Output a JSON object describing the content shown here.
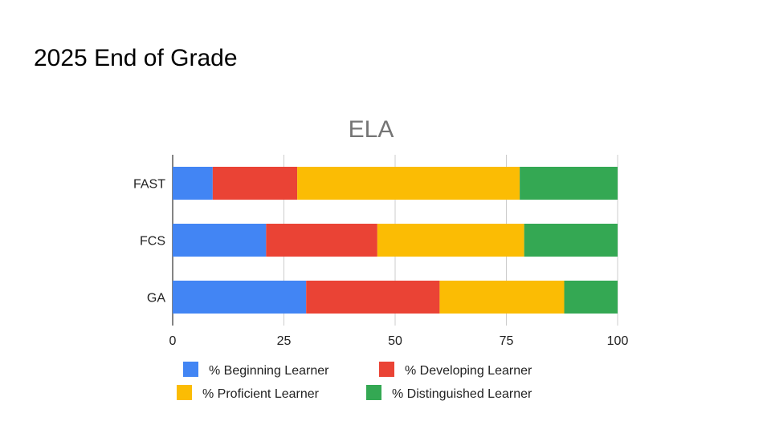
{
  "slide": {
    "title": "2025 End of Grade"
  },
  "chart_data": {
    "type": "bar",
    "orientation": "horizontal",
    "stacked": true,
    "title": "ELA",
    "categories": [
      "FAST",
      "FCS",
      "GA"
    ],
    "series": [
      {
        "name": "% Beginning Learner",
        "color": "#4285F4",
        "values": [
          9,
          21,
          30
        ]
      },
      {
        "name": "% Developing Learner",
        "color": "#EA4335",
        "values": [
          19,
          25,
          30
        ]
      },
      {
        "name": "% Proficient Learner",
        "color": "#FBBC04",
        "values": [
          50,
          33,
          28
        ]
      },
      {
        "name": "% Distinguished Learner",
        "color": "#34A853",
        "values": [
          22,
          21,
          12
        ]
      }
    ],
    "xlim": [
      0,
      100
    ],
    "xticks": [
      "0",
      "25",
      "50",
      "75",
      "100"
    ],
    "grid": true,
    "legend": "bottom"
  }
}
